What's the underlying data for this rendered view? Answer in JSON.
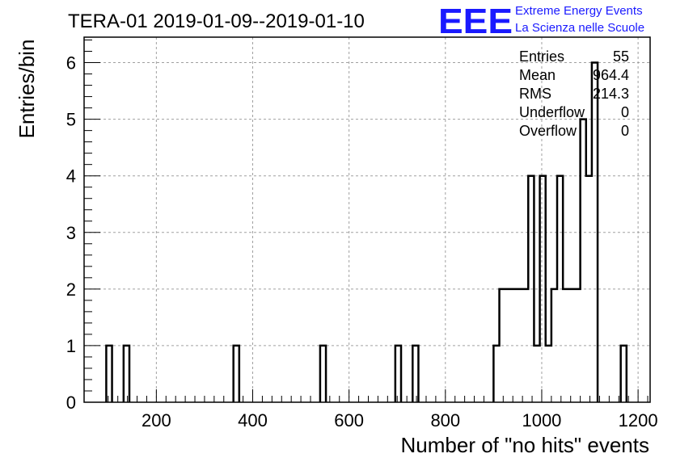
{
  "title": "TERA-01 2019-01-09--2019-01-10",
  "logo": {
    "mark": "EEE",
    "line1": "Extreme Energy Events",
    "line2": "La Scienza nelle Scuole",
    "color": "#1a1aff"
  },
  "stats": [
    {
      "label": "Entries",
      "value": "55"
    },
    {
      "label": "Mean",
      "value": "964.4"
    },
    {
      "label": "RMS",
      "value": "214.3"
    },
    {
      "label": "Underflow",
      "value": "0"
    },
    {
      "label": "Overflow",
      "value": "0"
    }
  ],
  "chart_data": {
    "type": "bar",
    "style": "histogram-step",
    "title": "TERA-01 2019-01-09--2019-01-10",
    "xlabel": "Number of \"no hits\" events",
    "ylabel": "Entries/bin",
    "xlim": [
      50,
      1225
    ],
    "ylim": [
      0,
      6.45
    ],
    "xticks": [
      200,
      400,
      600,
      800,
      1000,
      1200
    ],
    "yticks": [
      0,
      1,
      2,
      3,
      4,
      5,
      6
    ],
    "grid": true,
    "bin_width": 12,
    "bins": [
      {
        "x": 96,
        "count": 1
      },
      {
        "x": 132,
        "count": 1
      },
      {
        "x": 360,
        "count": 1
      },
      {
        "x": 540,
        "count": 1
      },
      {
        "x": 696,
        "count": 1
      },
      {
        "x": 732,
        "count": 1
      },
      {
        "x": 900,
        "count": 1
      },
      {
        "x": 912,
        "count": 2
      },
      {
        "x": 924,
        "count": 2
      },
      {
        "x": 936,
        "count": 2
      },
      {
        "x": 948,
        "count": 2
      },
      {
        "x": 960,
        "count": 2
      },
      {
        "x": 972,
        "count": 4
      },
      {
        "x": 984,
        "count": 1
      },
      {
        "x": 996,
        "count": 4
      },
      {
        "x": 1008,
        "count": 1
      },
      {
        "x": 1020,
        "count": 2
      },
      {
        "x": 1032,
        "count": 4
      },
      {
        "x": 1044,
        "count": 2
      },
      {
        "x": 1056,
        "count": 2
      },
      {
        "x": 1068,
        "count": 2
      },
      {
        "x": 1080,
        "count": 5
      },
      {
        "x": 1092,
        "count": 4
      },
      {
        "x": 1104,
        "count": 6
      },
      {
        "x": 1164,
        "count": 1
      }
    ],
    "line_color": "#000000",
    "grid_color": "#a0a0a0"
  }
}
